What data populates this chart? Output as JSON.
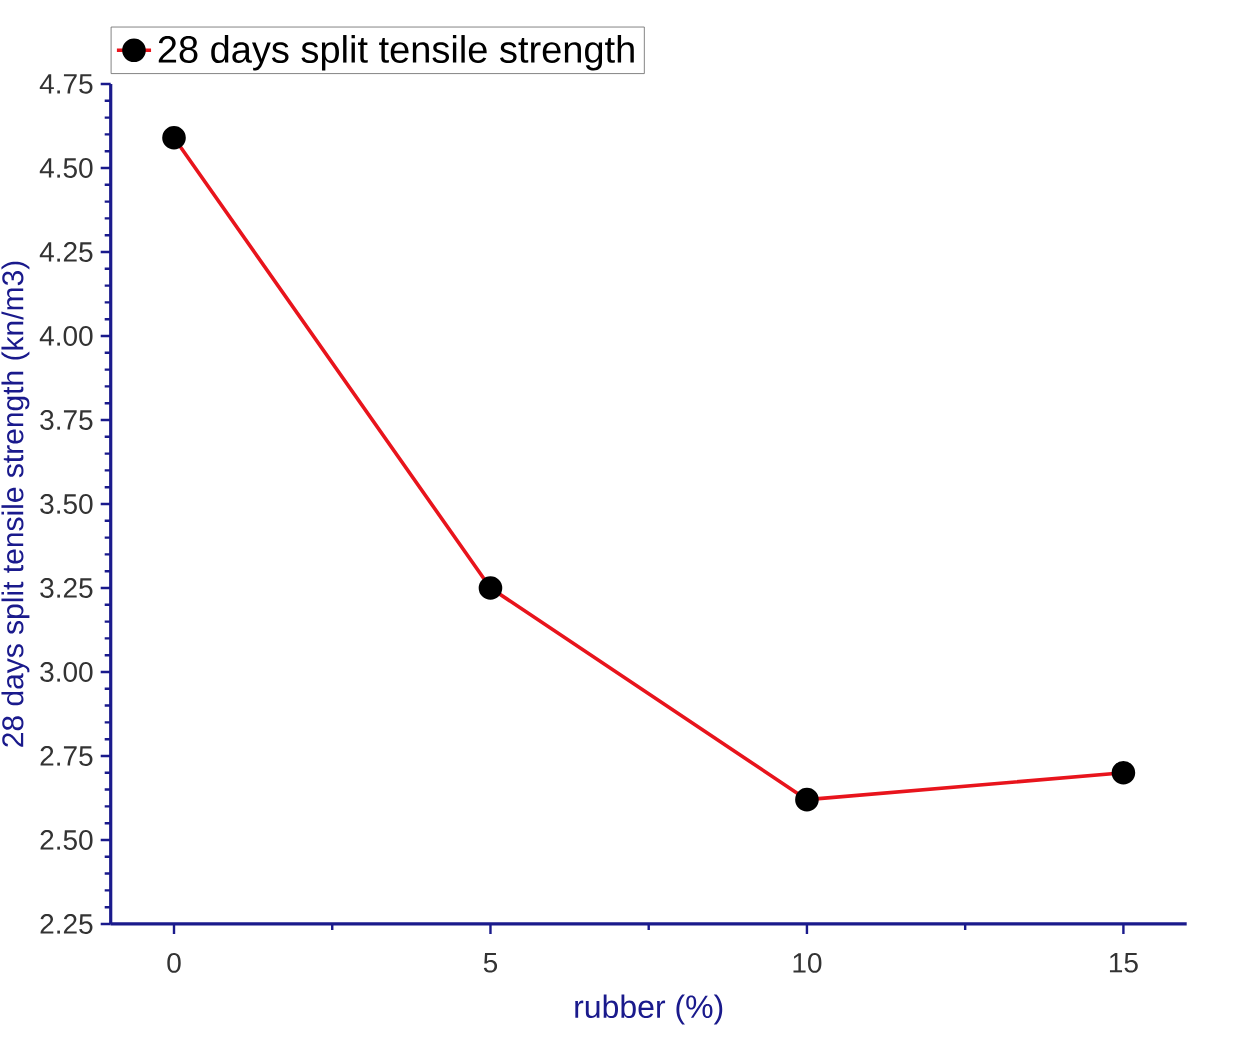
{
  "chart_data": {
    "type": "line",
    "xlabel": "rubber (%)",
    "ylabel": "28 days split tensile strength (kn/m3)",
    "x": [
      0,
      5,
      10,
      15
    ],
    "series": [
      {
        "name": "28 days split tensile strength",
        "color": "#e8141c",
        "values": [
          4.59,
          3.25,
          2.62,
          2.7
        ]
      }
    ],
    "xlim": [
      -1,
      16
    ],
    "xticks": [
      0,
      5,
      10,
      15
    ],
    "ylim": [
      2.25,
      4.75
    ],
    "yticks": [
      {
        "value": 2.25,
        "label": "2.25"
      },
      {
        "value": 2.5,
        "label": "2.50"
      },
      {
        "value": 2.75,
        "label": "2.75"
      },
      {
        "value": 3.0,
        "label": "3.00"
      },
      {
        "value": 3.25,
        "label": "3.25"
      },
      {
        "value": 3.5,
        "label": "3.50"
      },
      {
        "value": 3.75,
        "label": "3.75"
      },
      {
        "value": 4.0,
        "label": "4.00"
      },
      {
        "value": 4.25,
        "label": "4.25"
      },
      {
        "value": 4.5,
        "label": "4.50"
      },
      {
        "value": 4.75,
        "label": "4.75"
      }
    ],
    "legend": "top left",
    "marker": "circle",
    "line_style": "solid",
    "grid": false
  }
}
